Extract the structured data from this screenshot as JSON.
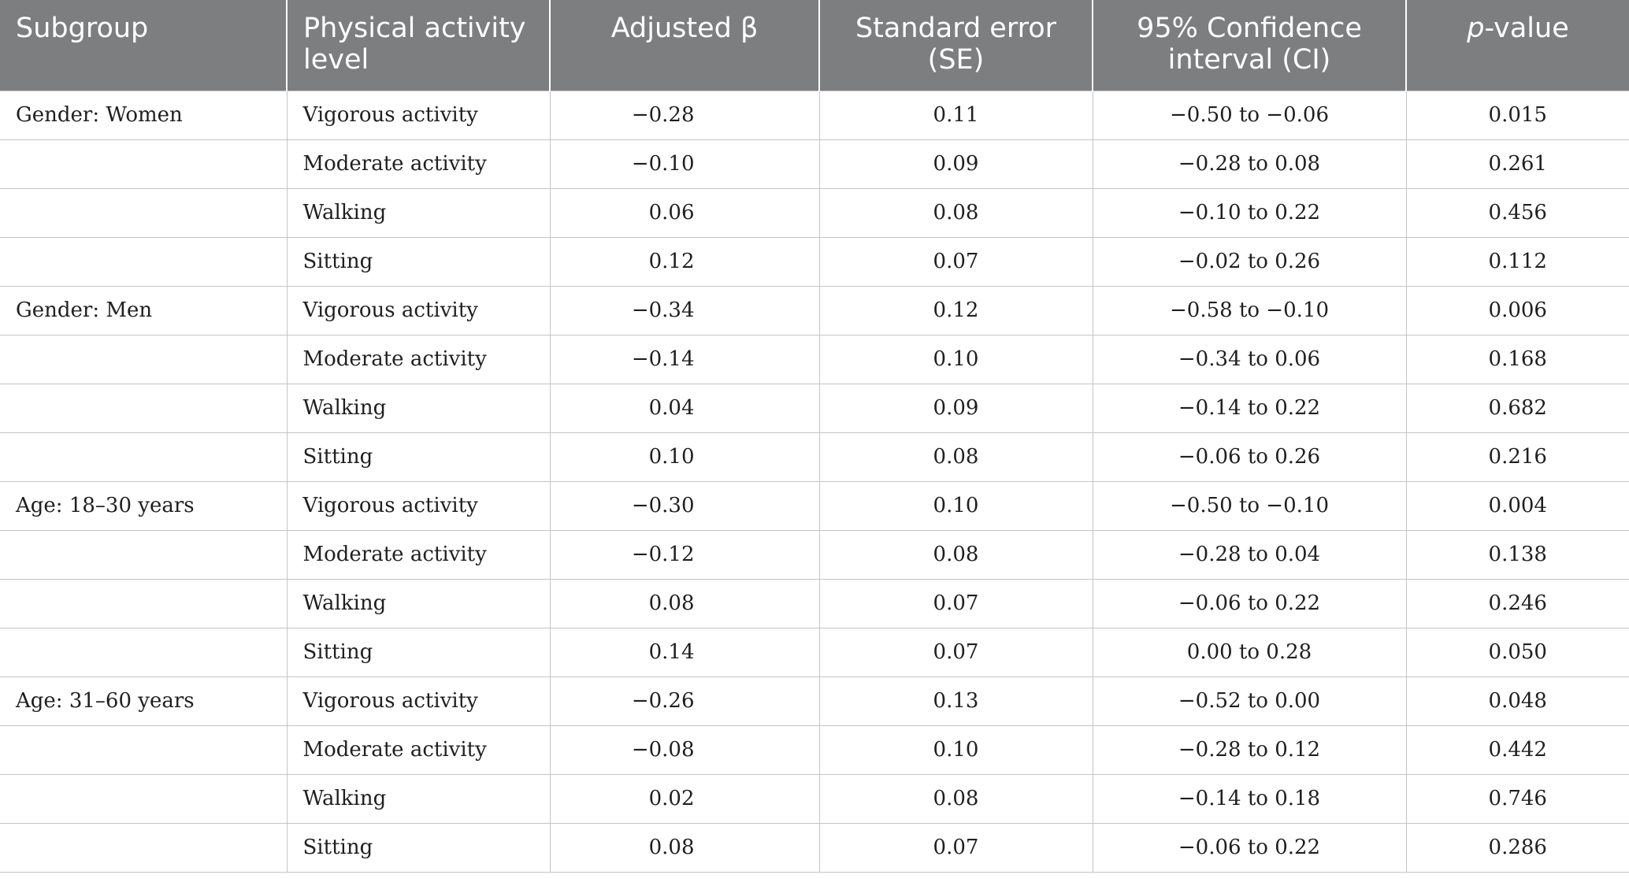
{
  "table": {
    "headers": {
      "subgroup": "Subgroup",
      "level_line1": "Physical activity",
      "level_line2": "level",
      "beta_text": "Adjusted β",
      "se_line1": "Standard error",
      "se_line2": "(SE)",
      "ci_line1": "95% Confidence",
      "ci_line2": "interval (CI)",
      "p_ital": "p",
      "p_rest": "-value"
    },
    "rows": [
      {
        "subgroup": "Gender: Women",
        "level": "Vigorous activity",
        "beta": "−0.28",
        "se": "0.11",
        "ci": "−0.50 to −0.06",
        "p": "0.015"
      },
      {
        "subgroup": "",
        "level": "Moderate activity",
        "beta": "−0.10",
        "se": "0.09",
        "ci": "−0.28 to 0.08",
        "p": "0.261"
      },
      {
        "subgroup": "",
        "level": "Walking",
        "beta": "0.06",
        "se": "0.08",
        "ci": "−0.10 to 0.22",
        "p": "0.456"
      },
      {
        "subgroup": "",
        "level": "Sitting",
        "beta": "0.12",
        "se": "0.07",
        "ci": "−0.02 to 0.26",
        "p": "0.112"
      },
      {
        "subgroup": "Gender: Men",
        "level": "Vigorous activity",
        "beta": "−0.34",
        "se": "0.12",
        "ci": "−0.58 to −0.10",
        "p": "0.006"
      },
      {
        "subgroup": "",
        "level": "Moderate activity",
        "beta": "−0.14",
        "se": "0.10",
        "ci": "−0.34 to 0.06",
        "p": "0.168"
      },
      {
        "subgroup": "",
        "level": "Walking",
        "beta": "0.04",
        "se": "0.09",
        "ci": "−0.14 to 0.22",
        "p": "0.682"
      },
      {
        "subgroup": "",
        "level": "Sitting",
        "beta": "0.10",
        "se": "0.08",
        "ci": "−0.06 to 0.26",
        "p": "0.216"
      },
      {
        "subgroup": "Age: 18–30 years",
        "level": "Vigorous activity",
        "beta": "−0.30",
        "se": "0.10",
        "ci": "−0.50 to −0.10",
        "p": "0.004"
      },
      {
        "subgroup": "",
        "level": "Moderate activity",
        "beta": "−0.12",
        "se": "0.08",
        "ci": "−0.28 to 0.04",
        "p": "0.138"
      },
      {
        "subgroup": "",
        "level": "Walking",
        "beta": "0.08",
        "se": "0.07",
        "ci": "−0.06 to 0.22",
        "p": "0.246"
      },
      {
        "subgroup": "",
        "level": "Sitting",
        "beta": "0.14",
        "se": "0.07",
        "ci": "0.00 to 0.28",
        "p": "0.050"
      },
      {
        "subgroup": "Age: 31–60 years",
        "level": "Vigorous activity",
        "beta": "−0.26",
        "se": "0.13",
        "ci": "−0.52 to 0.00",
        "p": "0.048"
      },
      {
        "subgroup": "",
        "level": "Moderate activity",
        "beta": "−0.08",
        "se": "0.10",
        "ci": "−0.28 to 0.12",
        "p": "0.442"
      },
      {
        "subgroup": "",
        "level": "Walking",
        "beta": "0.02",
        "se": "0.08",
        "ci": "−0.14 to 0.18",
        "p": "0.746"
      },
      {
        "subgroup": "",
        "level": "Sitting",
        "beta": "0.08",
        "se": "0.07",
        "ci": "−0.06 to 0.22",
        "p": "0.286"
      }
    ]
  },
  "colors": {
    "header_background": "#7d7e7f",
    "header_text": "#ffffff",
    "grid_line": "#c4c4c4"
  }
}
